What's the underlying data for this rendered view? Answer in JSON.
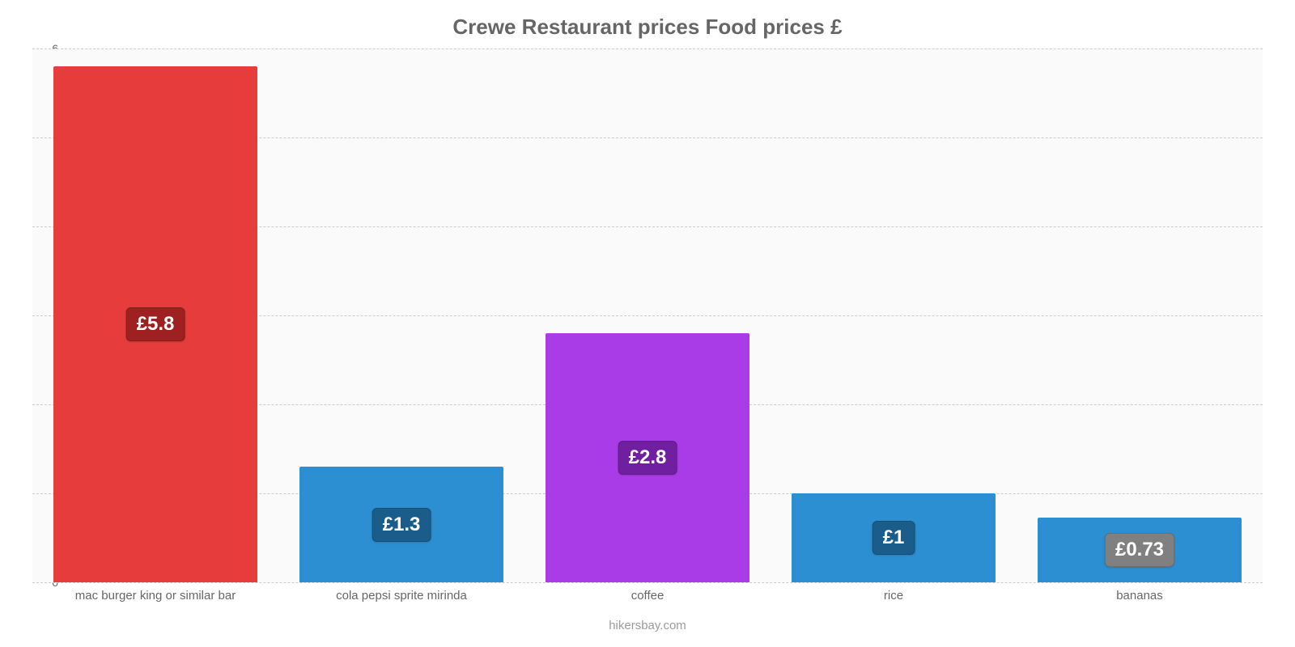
{
  "chart": {
    "type": "bar",
    "title": "Crewe Restaurant prices Food prices £",
    "title_fontsize": 26,
    "title_color": "#666666",
    "font_family": "Arial, Helvetica, sans-serif",
    "background_color": "#ffffff",
    "plot_background_color": "#fafafa",
    "grid_color": "#cccccc",
    "grid_dash": true,
    "ylim": [
      0,
      6
    ],
    "ytick_step": 1,
    "yticks": [
      0,
      1,
      2,
      3,
      4,
      5,
      6
    ],
    "ytick_fontsize": 14,
    "xlabel_fontsize": 15,
    "label_color": "#666666",
    "bar_width_ratio": 0.83,
    "value_prefix": "£",
    "value_label_fontsize": 24,
    "value_label_text_color": "#ffffff",
    "categories": [
      "mac burger king or similar bar",
      "cola pepsi sprite mirinda",
      "coffee",
      "rice",
      "bananas"
    ],
    "values": [
      5.8,
      1.3,
      2.8,
      1,
      0.73
    ],
    "value_labels": [
      "£5.8",
      "£1.3",
      "£2.8",
      "£1",
      "£0.73"
    ],
    "bar_colors": [
      "#e73c3c",
      "#2c8fd1",
      "#aa3ce7",
      "#2c8fd1",
      "#2c8fd1"
    ],
    "value_label_bg_colors": [
      "#9f2020",
      "#1a5d8a",
      "#6f1fa0",
      "#1a5d8a",
      "#808080"
    ],
    "credit": "hikersbay.com",
    "credit_color": "#9a9a9a",
    "credit_fontsize": 15
  }
}
